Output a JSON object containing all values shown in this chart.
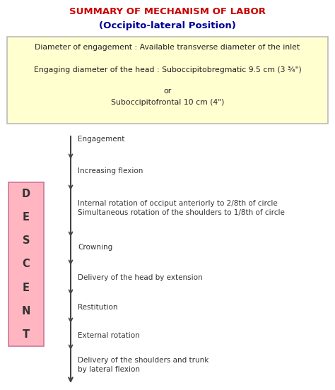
{
  "title": "SUMMARY OF MECHANISM OF LABOR",
  "subtitle": "(Occipito-lateral Position)",
  "title_color": "#CC0000",
  "subtitle_color": "#000099",
  "box_line1": "Diameter of engagement : Available transverse diameter of the inlet",
  "box_line2": "Engaging diameter of the head : Suboccipitobregmatic 9.5 cm (3 ¾\")",
  "box_line3": "or",
  "box_line4": "Suboccipitofrontal 10 cm (4\")",
  "box_bg": "#FFFFD0",
  "box_border": "#BBBBBB",
  "descent_letters": [
    "D",
    "E",
    "S",
    "C",
    "E",
    "N",
    "T"
  ],
  "descent_bg": "#FFB6C1",
  "descent_border": "#CC7799",
  "steps": [
    "Engagement",
    "Increasing flexion",
    "Internal rotation of occiput anteriorly to 2/8th of circle\nSimultaneous rotation of the shoulders to 1/8th of circle",
    "Crowning",
    "Delivery of the head by extension",
    "Restitution",
    "External rotation",
    "Delivery of the shoulders and trunk\nby lateral flexion"
  ],
  "bg_color": "#FFFFFF",
  "text_color": "#333333",
  "arrow_color": "#444444",
  "line_color": "#444444"
}
